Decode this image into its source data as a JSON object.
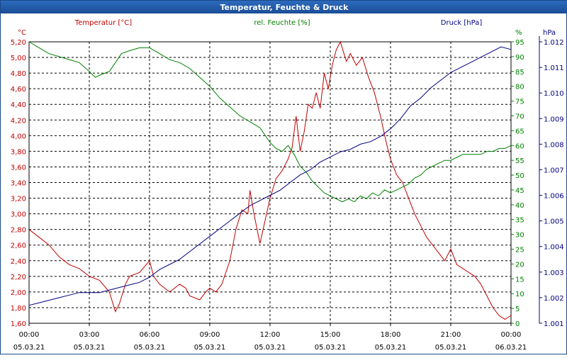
{
  "chart_data": {
    "type": "line",
    "title": "Temperatur, Feuchte & Druck",
    "grid": true,
    "x": {
      "ticks": [
        {
          "time": "00:00",
          "date": "05.03.21"
        },
        {
          "time": "03:00",
          "date": "05.03.21"
        },
        {
          "time": "06:00",
          "date": "05.03.21"
        },
        {
          "time": "09:00",
          "date": "05.03.21"
        },
        {
          "time": "12:00",
          "date": "05.03.21"
        },
        {
          "time": "15:00",
          "date": "05.03.21"
        },
        {
          "time": "18:00",
          "date": "05.03.21"
        },
        {
          "time": "21:00",
          "date": "05.03.21"
        },
        {
          "time": "00:00",
          "date": "06.03.21"
        }
      ],
      "range_hours": [
        0,
        24
      ]
    },
    "axes": {
      "temp": {
        "unit": "°C",
        "min": 1.6,
        "max": 5.2,
        "step": 0.2,
        "color": "#c00000",
        "ticks": [
          "5,20",
          "5,00",
          "4,80",
          "4,60",
          "4,40",
          "4,20",
          "4,00",
          "3,80",
          "3,60",
          "3,40",
          "3,20",
          "3,00",
          "2,80",
          "2,60",
          "2,40",
          "2,20",
          "2,00",
          "1,80",
          "1,60"
        ]
      },
      "hum": {
        "unit": "%",
        "min": 0,
        "max": 95,
        "step": 5,
        "color": "#008000",
        "ticks": [
          "95",
          "90",
          "85",
          "80",
          "75",
          "70",
          "65",
          "60",
          "55",
          "50",
          "45",
          "40",
          "35",
          "30",
          "25",
          "20",
          "15",
          "10",
          "5",
          "0"
        ]
      },
      "press": {
        "unit": "hPa",
        "min": 1.001,
        "max": 1.012,
        "step": 0.001,
        "color": "#000080",
        "ticks": [
          "1.012",
          "1.011",
          "1.010",
          "1.009",
          "1.008",
          "1.007",
          "1.006",
          "1.005",
          "1.004",
          "1.003",
          "1.002",
          "1.001"
        ]
      }
    },
    "series": [
      {
        "name": "Temperatur [°C]",
        "axis": "temp",
        "color": "#c00000",
        "x": [
          0,
          0.5,
          1,
          1.5,
          2,
          2.5,
          3,
          3.5,
          4,
          4.3,
          4.5,
          4.8,
          5,
          5.5,
          6,
          6.2,
          6.5,
          7,
          7.5,
          7.8,
          8,
          8.5,
          8.8,
          9,
          9.3,
          9.6,
          10,
          10.3,
          10.6,
          10.9,
          11,
          11.2,
          11.5,
          12,
          12.3,
          12.6,
          12.9,
          13.1,
          13.3,
          13.5,
          13.7,
          13.9,
          14.1,
          14.3,
          14.5,
          14.7,
          14.9,
          15.1,
          15.3,
          15.5,
          15.8,
          16,
          16.3,
          16.6,
          16.9,
          17.2,
          17.5,
          17.8,
          18,
          18.3,
          18.6,
          18.9,
          19.2,
          19.5,
          19.8,
          20.1,
          20.4,
          20.7,
          21,
          21.3,
          21.6,
          21.9,
          22.2,
          22.5,
          22.8,
          23.1,
          23.4,
          23.7,
          24
        ],
        "y": [
          2.8,
          2.7,
          2.6,
          2.45,
          2.35,
          2.3,
          2.2,
          2.15,
          2.0,
          1.75,
          1.85,
          2.1,
          2.2,
          2.25,
          2.4,
          2.2,
          2.1,
          2.0,
          2.1,
          2.05,
          1.95,
          1.9,
          2.0,
          2.05,
          2.0,
          2.1,
          2.4,
          2.8,
          3.05,
          3.0,
          3.3,
          3.0,
          2.62,
          3.2,
          3.45,
          3.55,
          3.7,
          3.85,
          4.25,
          3.8,
          4.05,
          4.4,
          4.35,
          4.55,
          4.35,
          4.8,
          4.6,
          4.9,
          5.1,
          5.2,
          4.95,
          5.05,
          4.9,
          5.0,
          4.75,
          4.55,
          4.25,
          3.9,
          3.7,
          3.5,
          3.4,
          3.2,
          3.0,
          2.85,
          2.7,
          2.6,
          2.5,
          2.4,
          2.55,
          2.35,
          2.3,
          2.25,
          2.2,
          2.1,
          1.95,
          1.8,
          1.7,
          1.65,
          1.7
        ]
      },
      {
        "name": "rel. Feuchte [%]",
        "axis": "hum",
        "color": "#008000",
        "x": [
          0,
          0.5,
          1,
          1.5,
          2,
          2.5,
          3,
          3.3,
          3.6,
          4,
          4.3,
          4.6,
          5,
          5.5,
          6,
          6.5,
          7,
          7.5,
          8,
          8.5,
          9,
          9.5,
          10,
          10.5,
          11,
          11.5,
          12,
          12.3,
          12.6,
          12.9,
          13.2,
          13.5,
          13.8,
          14.1,
          14.4,
          14.7,
          15,
          15.3,
          15.6,
          15.9,
          16.2,
          16.5,
          16.8,
          17.1,
          17.4,
          17.7,
          18,
          18.3,
          18.6,
          18.9,
          19.2,
          19.5,
          19.8,
          20.1,
          20.4,
          20.7,
          21,
          21.3,
          21.6,
          21.9,
          22.2,
          22.5,
          22.8,
          23.1,
          23.4,
          23.7,
          24
        ],
        "y": [
          95,
          93,
          91,
          90,
          89,
          88,
          85,
          83,
          84,
          85,
          88,
          91,
          92,
          93,
          93,
          91,
          89,
          88,
          86,
          83,
          80,
          76,
          73,
          70,
          68,
          66,
          61,
          59,
          58,
          60,
          57,
          53,
          51,
          48,
          46,
          44,
          43,
          42,
          41,
          42,
          41,
          43,
          42,
          44,
          43,
          45,
          44,
          45,
          46,
          47,
          49,
          50,
          52,
          53,
          54,
          55,
          55,
          56,
          57,
          57,
          57,
          57,
          58,
          58,
          59,
          59,
          60
        ]
      },
      {
        "name": "Druck [hPa]",
        "axis": "press",
        "color": "#000080",
        "x": [
          0,
          0.5,
          1,
          1.5,
          2,
          2.5,
          3,
          3.5,
          4,
          4.5,
          5,
          5.5,
          6,
          6.5,
          7,
          7.5,
          8,
          8.5,
          9,
          9.5,
          10,
          10.5,
          11,
          11.5,
          12,
          12.5,
          13,
          13.5,
          14,
          14.5,
          15,
          15.5,
          16,
          16.5,
          17,
          17.5,
          18,
          18.5,
          19,
          19.5,
          20,
          20.5,
          21,
          21.5,
          22,
          22.5,
          23,
          23.5,
          24
        ],
        "y": [
          1.0017,
          1.0018,
          1.0019,
          1.002,
          1.0021,
          1.0022,
          1.0022,
          1.0022,
          1.0023,
          1.0024,
          1.0025,
          1.0026,
          1.0028,
          1.0031,
          1.0033,
          1.0035,
          1.0038,
          1.0041,
          1.0044,
          1.0047,
          1.005,
          1.0053,
          1.0056,
          1.0058,
          1.006,
          1.0062,
          1.0065,
          1.0068,
          1.007,
          1.0073,
          1.0075,
          1.0077,
          1.0078,
          1.008,
          1.0081,
          1.0083,
          1.0086,
          1.009,
          1.0095,
          1.0098,
          1.0102,
          1.0105,
          1.0108,
          1.011,
          1.0112,
          1.0114,
          1.0116,
          1.0118,
          1.0117
        ]
      }
    ]
  }
}
